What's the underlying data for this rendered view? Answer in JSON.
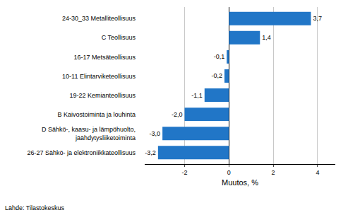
{
  "chart_data": {
    "type": "bar",
    "orientation": "horizontal",
    "categories": [
      "26-27 Sähkö- ja elektroniikkateollisuus",
      "D Sähkö-, kaasu- ja lämpöhuolto,\njäähdytysliiketoiminta",
      "B Kaivostoiminta ja louhinta",
      "19-22 Kemianteollisuus",
      "10-11 Elintarviketeollisuus",
      "16-17 Metsäteollisuus",
      "C Teollisuus",
      "24-30_33 Metalliteollisuus"
    ],
    "values": [
      -3.2,
      -3.0,
      -2.0,
      -1.1,
      -0.2,
      -0.1,
      1.4,
      3.7
    ],
    "value_labels": [
      "-3,2",
      "-3,0",
      "-2,0",
      "-1,1",
      "-0,2",
      "-0,1",
      "1,4",
      "3,7"
    ],
    "data_labels": true,
    "color": "#2176c7",
    "xlabel": "Muutos, %",
    "xlim": [
      -3.8,
      4.8
    ],
    "xticks": [
      -2,
      0,
      2,
      4
    ],
    "grid": true,
    "annotations": [
      "Lähde: Tilastokeskus"
    ]
  }
}
